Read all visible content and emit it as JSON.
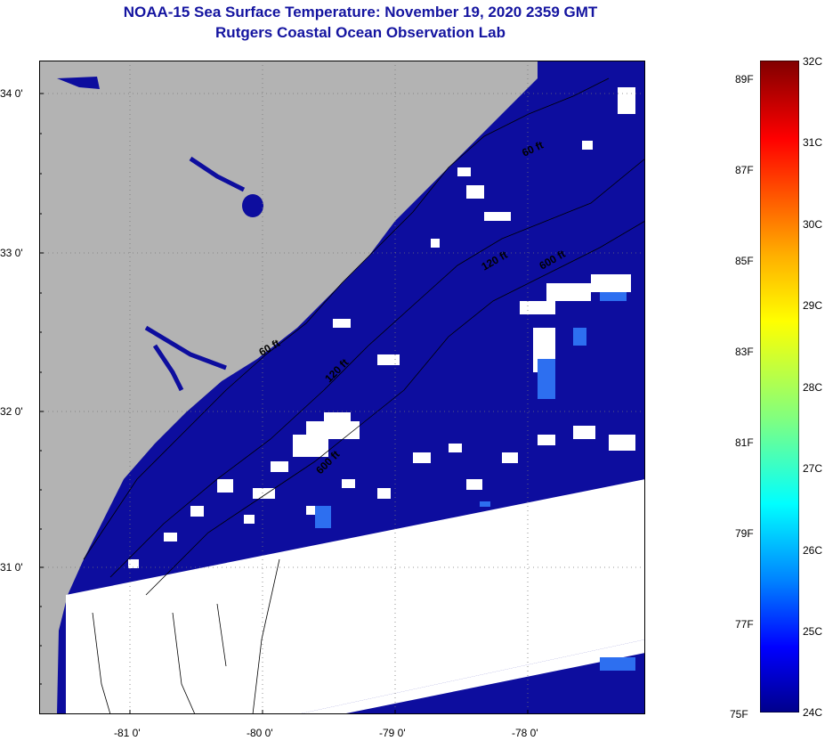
{
  "header": {
    "title": "NOAA-15 Sea Surface Temperature:  November 19, 2020 2359 GMT",
    "subtitle": "Rutgers Coastal Ocean Observation Lab"
  },
  "map": {
    "lon_ticks": [
      "-81 0'",
      "-80 0'",
      "-79 0'",
      "-78 0'"
    ],
    "lat_ticks": [
      "34 0'",
      "33 0'",
      "32 0'",
      "31 0'"
    ],
    "contour_labels": [
      "60 ft",
      "120 ft",
      "600 ft",
      "60 ft",
      "120 ft",
      "600 ft"
    ],
    "colors": {
      "land": "#b3b3b3",
      "ocean": "#0d0d9e",
      "no_data": "#ffffff",
      "warm_patch": "#2d6ff0"
    }
  },
  "colorbar": {
    "celsius": [
      "32C",
      "31C",
      "30C",
      "29C",
      "28C",
      "27C",
      "26C",
      "25C",
      "24C"
    ],
    "fahrenheit": [
      "89F",
      "87F",
      "85F",
      "83F",
      "81F",
      "79F",
      "77F",
      "75F"
    ],
    "min_c": 24,
    "max_c": 32
  }
}
